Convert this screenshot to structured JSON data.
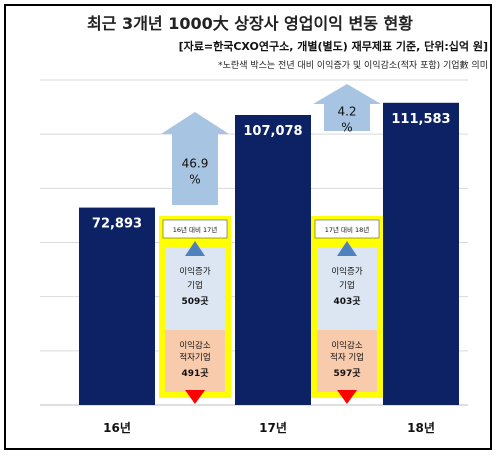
{
  "title": "최근 3개년 1000大 상장사 영업이익 변동 현황",
  "source": "[자료=한국CXO연구소, 개별(별도) 재무제표 기준, 단위:십억 원]",
  "note": "*노란색 박스는 전년 대비 이익증가 및 이익감소(적자 포함) 기업數 의미",
  "colors": {
    "bar": "#0d2264",
    "arrow": "#a7c4e2",
    "yellow": "#ffff00",
    "increase_box": "#dce6f2",
    "decrease_box": "#f8cbad",
    "triangle_up": "#4f81bd",
    "triangle_down": "#ff0000",
    "grid": "#d9d9d9"
  },
  "chart_data": {
    "type": "bar",
    "categories": [
      "16년",
      "17년",
      "18년"
    ],
    "values": [
      72893,
      107078,
      111583
    ],
    "value_labels": [
      "72,893",
      "107,078",
      "111,583"
    ],
    "ylim": [
      0,
      120000
    ],
    "grid": true,
    "growth_annotations": [
      {
        "between": [
          "16년",
          "17년"
        ],
        "label_line1": "46.9",
        "label_line2": "%"
      },
      {
        "between": [
          "17년",
          "18년"
        ],
        "label_line1": "4.2",
        "label_line2": "%"
      }
    ],
    "comparison_boxes": [
      {
        "header": "16년 대비 17년",
        "increase_label_line1": "이익증가",
        "increase_label_line2": "기업",
        "increase_count": "509곳",
        "decrease_label_line1": "이익감소",
        "decrease_label_line2": "적자기업",
        "decrease_count": "491곳"
      },
      {
        "header": "17년 대비 18년",
        "increase_label_line1": "이익증가",
        "increase_label_line2": "기업",
        "increase_count": "403곳",
        "decrease_label_line1": "이익감소",
        "decrease_label_line2": "적자 기업",
        "decrease_count": "597곳"
      }
    ]
  }
}
